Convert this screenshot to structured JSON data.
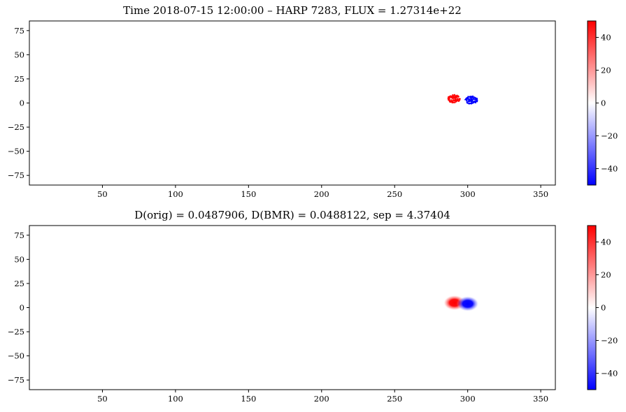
{
  "chart_data": [
    {
      "type": "heatmap",
      "title": "Time 2018-07-15 12:00:00 – HARP 7283, FLUX = 1.27314e+22",
      "xlabel": "",
      "ylabel": "",
      "xlim": [
        0,
        360
      ],
      "ylim": [
        -85,
        85
      ],
      "xticks": [
        50,
        100,
        150,
        200,
        250,
        300,
        350
      ],
      "yticks": [
        75,
        50,
        25,
        0,
        -25,
        -50,
        -75
      ],
      "colorbar": {
        "range": [
          -50,
          50
        ],
        "ticks": [
          40,
          20,
          0,
          -20,
          -40
        ],
        "colors": [
          "#0000ff",
          "#ffffff",
          "#ff0000"
        ]
      },
      "grid": false,
      "regions": [
        {
          "polarity": "positive",
          "x": 290,
          "y": 5,
          "value": 50
        },
        {
          "polarity": "negative",
          "x": 302,
          "y": 3.5,
          "value": -50
        }
      ]
    },
    {
      "type": "heatmap",
      "title": "D(orig) = 0.0487906, D(BMR) = 0.0488122, sep = 4.37404",
      "xlabel": "",
      "ylabel": "",
      "xlim": [
        0,
        360
      ],
      "ylim": [
        -85,
        85
      ],
      "xticks": [
        50,
        100,
        150,
        200,
        250,
        300,
        350
      ],
      "yticks": [
        75,
        50,
        25,
        0,
        -25,
        -50,
        -75
      ],
      "colorbar": {
        "range": [
          -50,
          50
        ],
        "ticks": [
          40,
          20,
          0,
          -20,
          -40
        ],
        "colors": [
          "#0000ff",
          "#ffffff",
          "#ff0000"
        ]
      },
      "grid": false,
      "regions": [
        {
          "polarity": "positive",
          "x": 291,
          "y": 5,
          "value": 50
        },
        {
          "polarity": "negative",
          "x": 300,
          "y": 4,
          "value": -50
        }
      ]
    }
  ]
}
